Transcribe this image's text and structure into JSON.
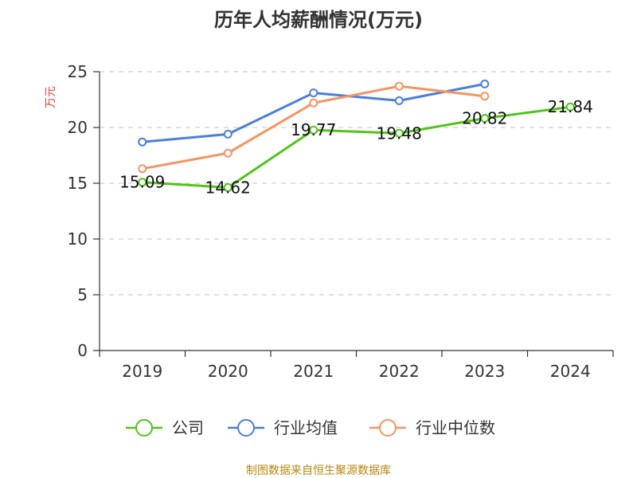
{
  "chart_data": {
    "type": "line",
    "title": "历年人均薪酬情况(万元)",
    "ylabel": "万元",
    "xlabel": "",
    "categories": [
      "2019",
      "2020",
      "2021",
      "2022",
      "2023",
      "2024"
    ],
    "ylim": [
      0,
      25
    ],
    "yticks": [
      0,
      5,
      10,
      15,
      20,
      25
    ],
    "grid": true,
    "legend_position": "bottom",
    "series": [
      {
        "name": "公司",
        "color": "#52c41a",
        "values": [
          15.09,
          14.62,
          19.77,
          19.48,
          20.82,
          21.84
        ],
        "labels": [
          "15.09",
          "14.62",
          "19.77",
          "19.48",
          "20.82",
          "21.84"
        ]
      },
      {
        "name": "行业均值",
        "color": "#4a7fdc",
        "values": [
          18.7,
          19.4,
          23.1,
          22.4,
          23.9,
          null
        ]
      },
      {
        "name": "行业中位数",
        "color": "#f59460",
        "values": [
          16.3,
          17.7,
          22.2,
          23.7,
          22.8,
          null
        ]
      }
    ]
  },
  "source": "制图数据来自恒生聚源数据库"
}
